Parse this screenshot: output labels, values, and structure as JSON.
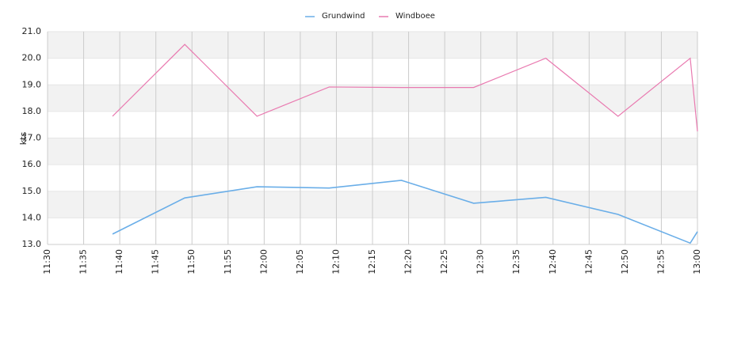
{
  "chart_data": {
    "type": "line",
    "y_label": "kts",
    "x": [
      "11:39",
      "11:49",
      "11:59",
      "12:09",
      "12:19",
      "12:29",
      "12:39",
      "12:49",
      "12:59",
      "13:00"
    ],
    "series": [
      {
        "name": "Grundwind",
        "color": "#6aaee8",
        "values": [
          13.39,
          14.75,
          15.17,
          15.12,
          15.41,
          14.55,
          14.77,
          14.13,
          13.05,
          13.48
        ]
      },
      {
        "name": "Windboee",
        "color": "#e97ab0",
        "values": [
          17.82,
          20.52,
          17.82,
          18.92,
          18.9,
          18.9,
          20.0,
          17.82,
          20.0,
          17.25
        ]
      }
    ],
    "xlim": [
      "11:30",
      "13:00"
    ],
    "xticks": [
      "11:30",
      "11:35",
      "11:40",
      "11:45",
      "11:50",
      "11:55",
      "12:00",
      "12:05",
      "12:10",
      "12:15",
      "12:20",
      "12:25",
      "12:30",
      "12:35",
      "12:40",
      "12:45",
      "12:50",
      "12:55",
      "13:00"
    ],
    "ylim": [
      13,
      21
    ],
    "yticks": [
      {
        "value": 13,
        "label": "13.0"
      },
      {
        "value": 14,
        "label": "14.0"
      },
      {
        "value": 15,
        "label": "15.0"
      },
      {
        "value": 16,
        "label": "16.0"
      },
      {
        "value": 17,
        "label": "17.0"
      },
      {
        "value": 18,
        "label": "18.0"
      },
      {
        "value": 19,
        "label": "19.0"
      },
      {
        "value": 20,
        "label": "20.0"
      },
      {
        "value": 21,
        "label": "21.0"
      }
    ],
    "grid": true,
    "legend": "top"
  }
}
